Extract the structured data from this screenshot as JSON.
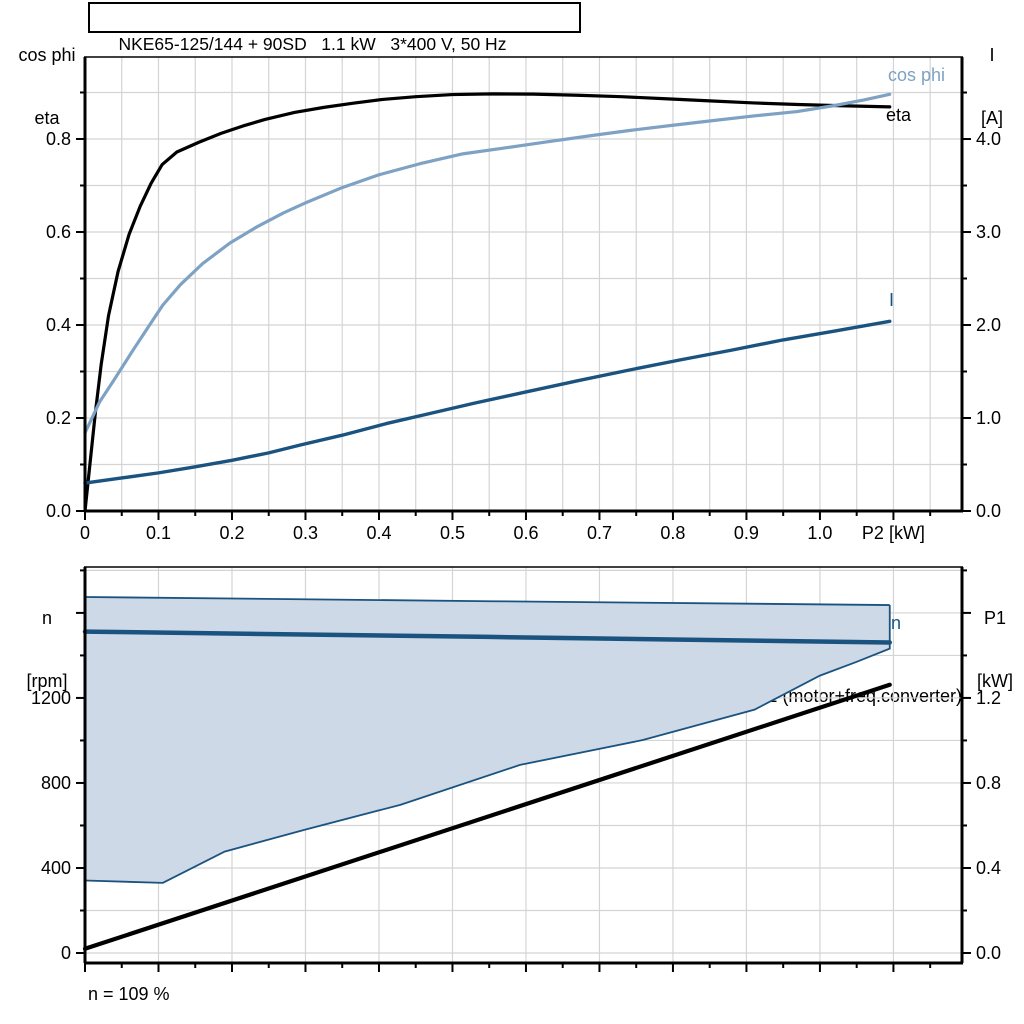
{
  "title": "NKE65-125/144 + 90SD   1.1 kW   3*400 V, 50 Hz",
  "footnote": "n = 109 %",
  "colors": {
    "black": "#000000",
    "light_blue": "#7ea2c3",
    "dark_blue": "#1a5380",
    "fill_blue": "#cdd9e6",
    "grid": "#d4d4d4",
    "frame": "#000000"
  },
  "chart_data": [
    {
      "type": "line",
      "name": "motor-performance",
      "title": "NKE65-125/144 + 90SD   1.1 kW   3*400 V, 50 Hz",
      "x_axis": {
        "min": 0,
        "max": 1.1933,
        "grid_step": 0.05,
        "minor_step": 0.05,
        "major_ticks": [
          0,
          0.1,
          0.2,
          0.3,
          0.4,
          0.5,
          0.6,
          0.7,
          0.8,
          0.9,
          1.0
        ],
        "tick_labels": [
          "0",
          "0.1",
          "0.2",
          "0.3",
          "0.4",
          "0.5",
          "0.6",
          "0.7",
          "0.8",
          "0.9",
          "1.0"
        ],
        "end_label": "P2 [kW]",
        "end_label_at": 1.1
      },
      "y_left": {
        "title_lines": [
          "cos phi",
          "eta"
        ],
        "min": 0,
        "max": 0.9763,
        "minor_step": 0.1,
        "major_ticks": [
          0,
          0.2,
          0.4,
          0.6,
          0.8
        ],
        "tick_labels": [
          "0.0",
          "0.2",
          "0.4",
          "0.6",
          "0.8"
        ]
      },
      "y_right": {
        "title_lines": [
          "I",
          "[A]"
        ],
        "min": 0,
        "max": 4.882,
        "minor_step": 0.5,
        "major_ticks": [
          0,
          1,
          2,
          3,
          4
        ],
        "tick_labels": [
          "0.0",
          "1.0",
          "2.0",
          "3.0",
          "4.0"
        ]
      },
      "series": [
        {
          "name": "eta",
          "label": "eta",
          "axis": "left",
          "color": "black",
          "width": 3.2,
          "points": [
            [
              0,
              0
            ],
            [
              0.006,
              0.09
            ],
            [
              0.014,
              0.21
            ],
            [
              0.022,
              0.315
            ],
            [
              0.032,
              0.42
            ],
            [
              0.045,
              0.515
            ],
            [
              0.06,
              0.595
            ],
            [
              0.075,
              0.655
            ],
            [
              0.09,
              0.705
            ],
            [
              0.105,
              0.745
            ],
            [
              0.125,
              0.772
            ],
            [
              0.155,
              0.793
            ],
            [
              0.185,
              0.812
            ],
            [
              0.215,
              0.828
            ],
            [
              0.245,
              0.842
            ],
            [
              0.285,
              0.857
            ],
            [
              0.325,
              0.868
            ],
            [
              0.365,
              0.877
            ],
            [
              0.405,
              0.885
            ],
            [
              0.45,
              0.891
            ],
            [
              0.5,
              0.8955
            ],
            [
              0.555,
              0.897
            ],
            [
              0.61,
              0.8965
            ],
            [
              0.67,
              0.894
            ],
            [
              0.73,
              0.891
            ],
            [
              0.79,
              0.8865
            ],
            [
              0.85,
              0.882
            ],
            [
              0.91,
              0.8775
            ],
            [
              0.97,
              0.8742
            ],
            [
              1.03,
              0.8715
            ],
            [
              1.095,
              0.869
            ]
          ]
        },
        {
          "name": "cos-phi",
          "label": "cos phi",
          "axis": "left",
          "color": "light_blue",
          "width": 3.2,
          "points": [
            [
              0,
              0.168
            ],
            [
              0.02,
              0.235
            ],
            [
              0.04,
              0.283
            ],
            [
              0.065,
              0.345
            ],
            [
              0.09,
              0.405
            ],
            [
              0.106,
              0.443
            ],
            [
              0.13,
              0.487
            ],
            [
              0.16,
              0.532
            ],
            [
              0.197,
              0.576
            ],
            [
              0.235,
              0.612
            ],
            [
              0.27,
              0.641
            ],
            [
              0.302,
              0.664
            ],
            [
              0.35,
              0.6955
            ],
            [
              0.4,
              0.723
            ],
            [
              0.455,
              0.7465
            ],
            [
              0.514,
              0.768
            ],
            [
              0.57,
              0.7805
            ],
            [
              0.629,
              0.794
            ],
            [
              0.69,
              0.8075
            ],
            [
              0.742,
              0.8185
            ],
            [
              0.8,
              0.8295
            ],
            [
              0.854,
              0.8395
            ],
            [
              0.91,
              0.8495
            ],
            [
              0.969,
              0.859
            ],
            [
              1.02,
              0.872
            ],
            [
              1.06,
              0.884
            ],
            [
              1.095,
              0.896
            ]
          ]
        },
        {
          "name": "current",
          "label": "I",
          "axis": "right",
          "color": "dark_blue",
          "width": 3.4,
          "points": [
            [
              0,
              0.3
            ],
            [
              0.05,
              0.355
            ],
            [
              0.1,
              0.41
            ],
            [
              0.15,
              0.475
            ],
            [
              0.2,
              0.545
            ],
            [
              0.25,
              0.625
            ],
            [
              0.293,
              0.71
            ],
            [
              0.35,
              0.815
            ],
            [
              0.41,
              0.94
            ],
            [
              0.47,
              1.05
            ],
            [
              0.53,
              1.16
            ],
            [
              0.6,
              1.28
            ],
            [
              0.67,
              1.4
            ],
            [
              0.74,
              1.515
            ],
            [
              0.81,
              1.625
            ],
            [
              0.88,
              1.73
            ],
            [
              0.95,
              1.84
            ],
            [
              1.02,
              1.935
            ],
            [
              1.095,
              2.04
            ]
          ]
        }
      ]
    },
    {
      "type": "area",
      "name": "speed-power",
      "x_axis": {
        "min": 0,
        "max": 1.1933,
        "grid_step": 0.1,
        "minor_step": 0.05,
        "major_ticks": [
          0,
          0.1,
          0.2,
          0.3,
          0.4,
          0.5,
          0.6,
          0.7,
          0.8,
          0.9,
          1.0,
          1.1
        ],
        "tick_labels": []
      },
      "y_left": {
        "title_lines": [
          "n",
          "[rpm]"
        ],
        "min": -47,
        "max": 1816,
        "minor_step": 200,
        "major_ticks": [
          0,
          400,
          800,
          1200
        ],
        "tick_labels": [
          "0",
          "400",
          "800",
          "1200"
        ]
      },
      "y_right": {
        "title_lines": [
          "P1",
          "[kW]"
        ],
        "min": -0.047,
        "max": 1.816,
        "minor_step": 0.2,
        "major_ticks": [
          0,
          0.4,
          0.8,
          1.2
        ],
        "tick_labels": [
          "0.0",
          "0.4",
          "0.8",
          "1.2"
        ]
      },
      "area": {
        "name": "duty-envelope",
        "fill": "fill_blue",
        "stroke": "dark_blue",
        "stroke_width": 1.8,
        "upper": [
          [
            0,
            1675
          ],
          [
            0.55,
            1655
          ],
          [
            1.095,
            1637
          ]
        ],
        "lower": [
          [
            0,
            341
          ],
          [
            0.106,
            330
          ],
          [
            0.19,
            477
          ],
          [
            0.299,
            580
          ],
          [
            0.429,
            697
          ],
          [
            0.592,
            885
          ],
          [
            0.759,
            1002
          ],
          [
            0.911,
            1145
          ],
          [
            1.0,
            1305
          ],
          [
            1.05,
            1370
          ],
          [
            1.095,
            1432
          ]
        ]
      },
      "series": [
        {
          "name": "speed",
          "label": "n",
          "axis": "left",
          "color": "dark_blue",
          "width": 4.5,
          "points": [
            [
              0,
              1512
            ],
            [
              0.55,
              1487
            ],
            [
              1.095,
              1461
            ]
          ]
        },
        {
          "name": "p1",
          "label": "P1 (motor+freq.converter)",
          "axis": "right",
          "color": "black",
          "width": 4.2,
          "points": [
            [
              0,
              0.02
            ],
            [
              1.095,
              1.262
            ]
          ]
        }
      ]
    }
  ]
}
